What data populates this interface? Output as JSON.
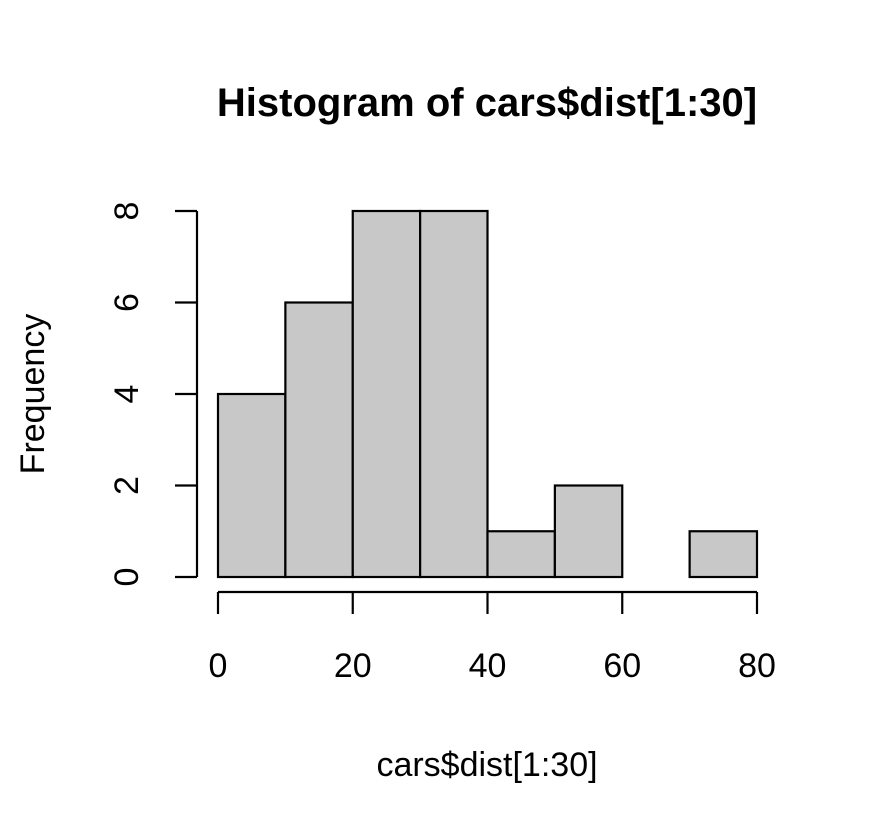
{
  "chart_data": {
    "type": "bar",
    "title": "Histogram of cars$dist[1:30]",
    "xlabel": "cars$dist[1:30]",
    "ylabel": "Frequency",
    "bin_edges": [
      0,
      10,
      20,
      30,
      40,
      50,
      60,
      70,
      80
    ],
    "values": [
      4,
      6,
      8,
      8,
      1,
      2,
      0,
      1
    ],
    "xlim": [
      0,
      80
    ],
    "ylim": [
      0,
      8
    ],
    "x_ticks": [
      0,
      20,
      40,
      60,
      80
    ],
    "y_ticks": [
      0,
      2,
      4,
      6,
      8
    ],
    "grid": false,
    "bar_color": "#c8c8c8",
    "edge_color": "#000000"
  }
}
